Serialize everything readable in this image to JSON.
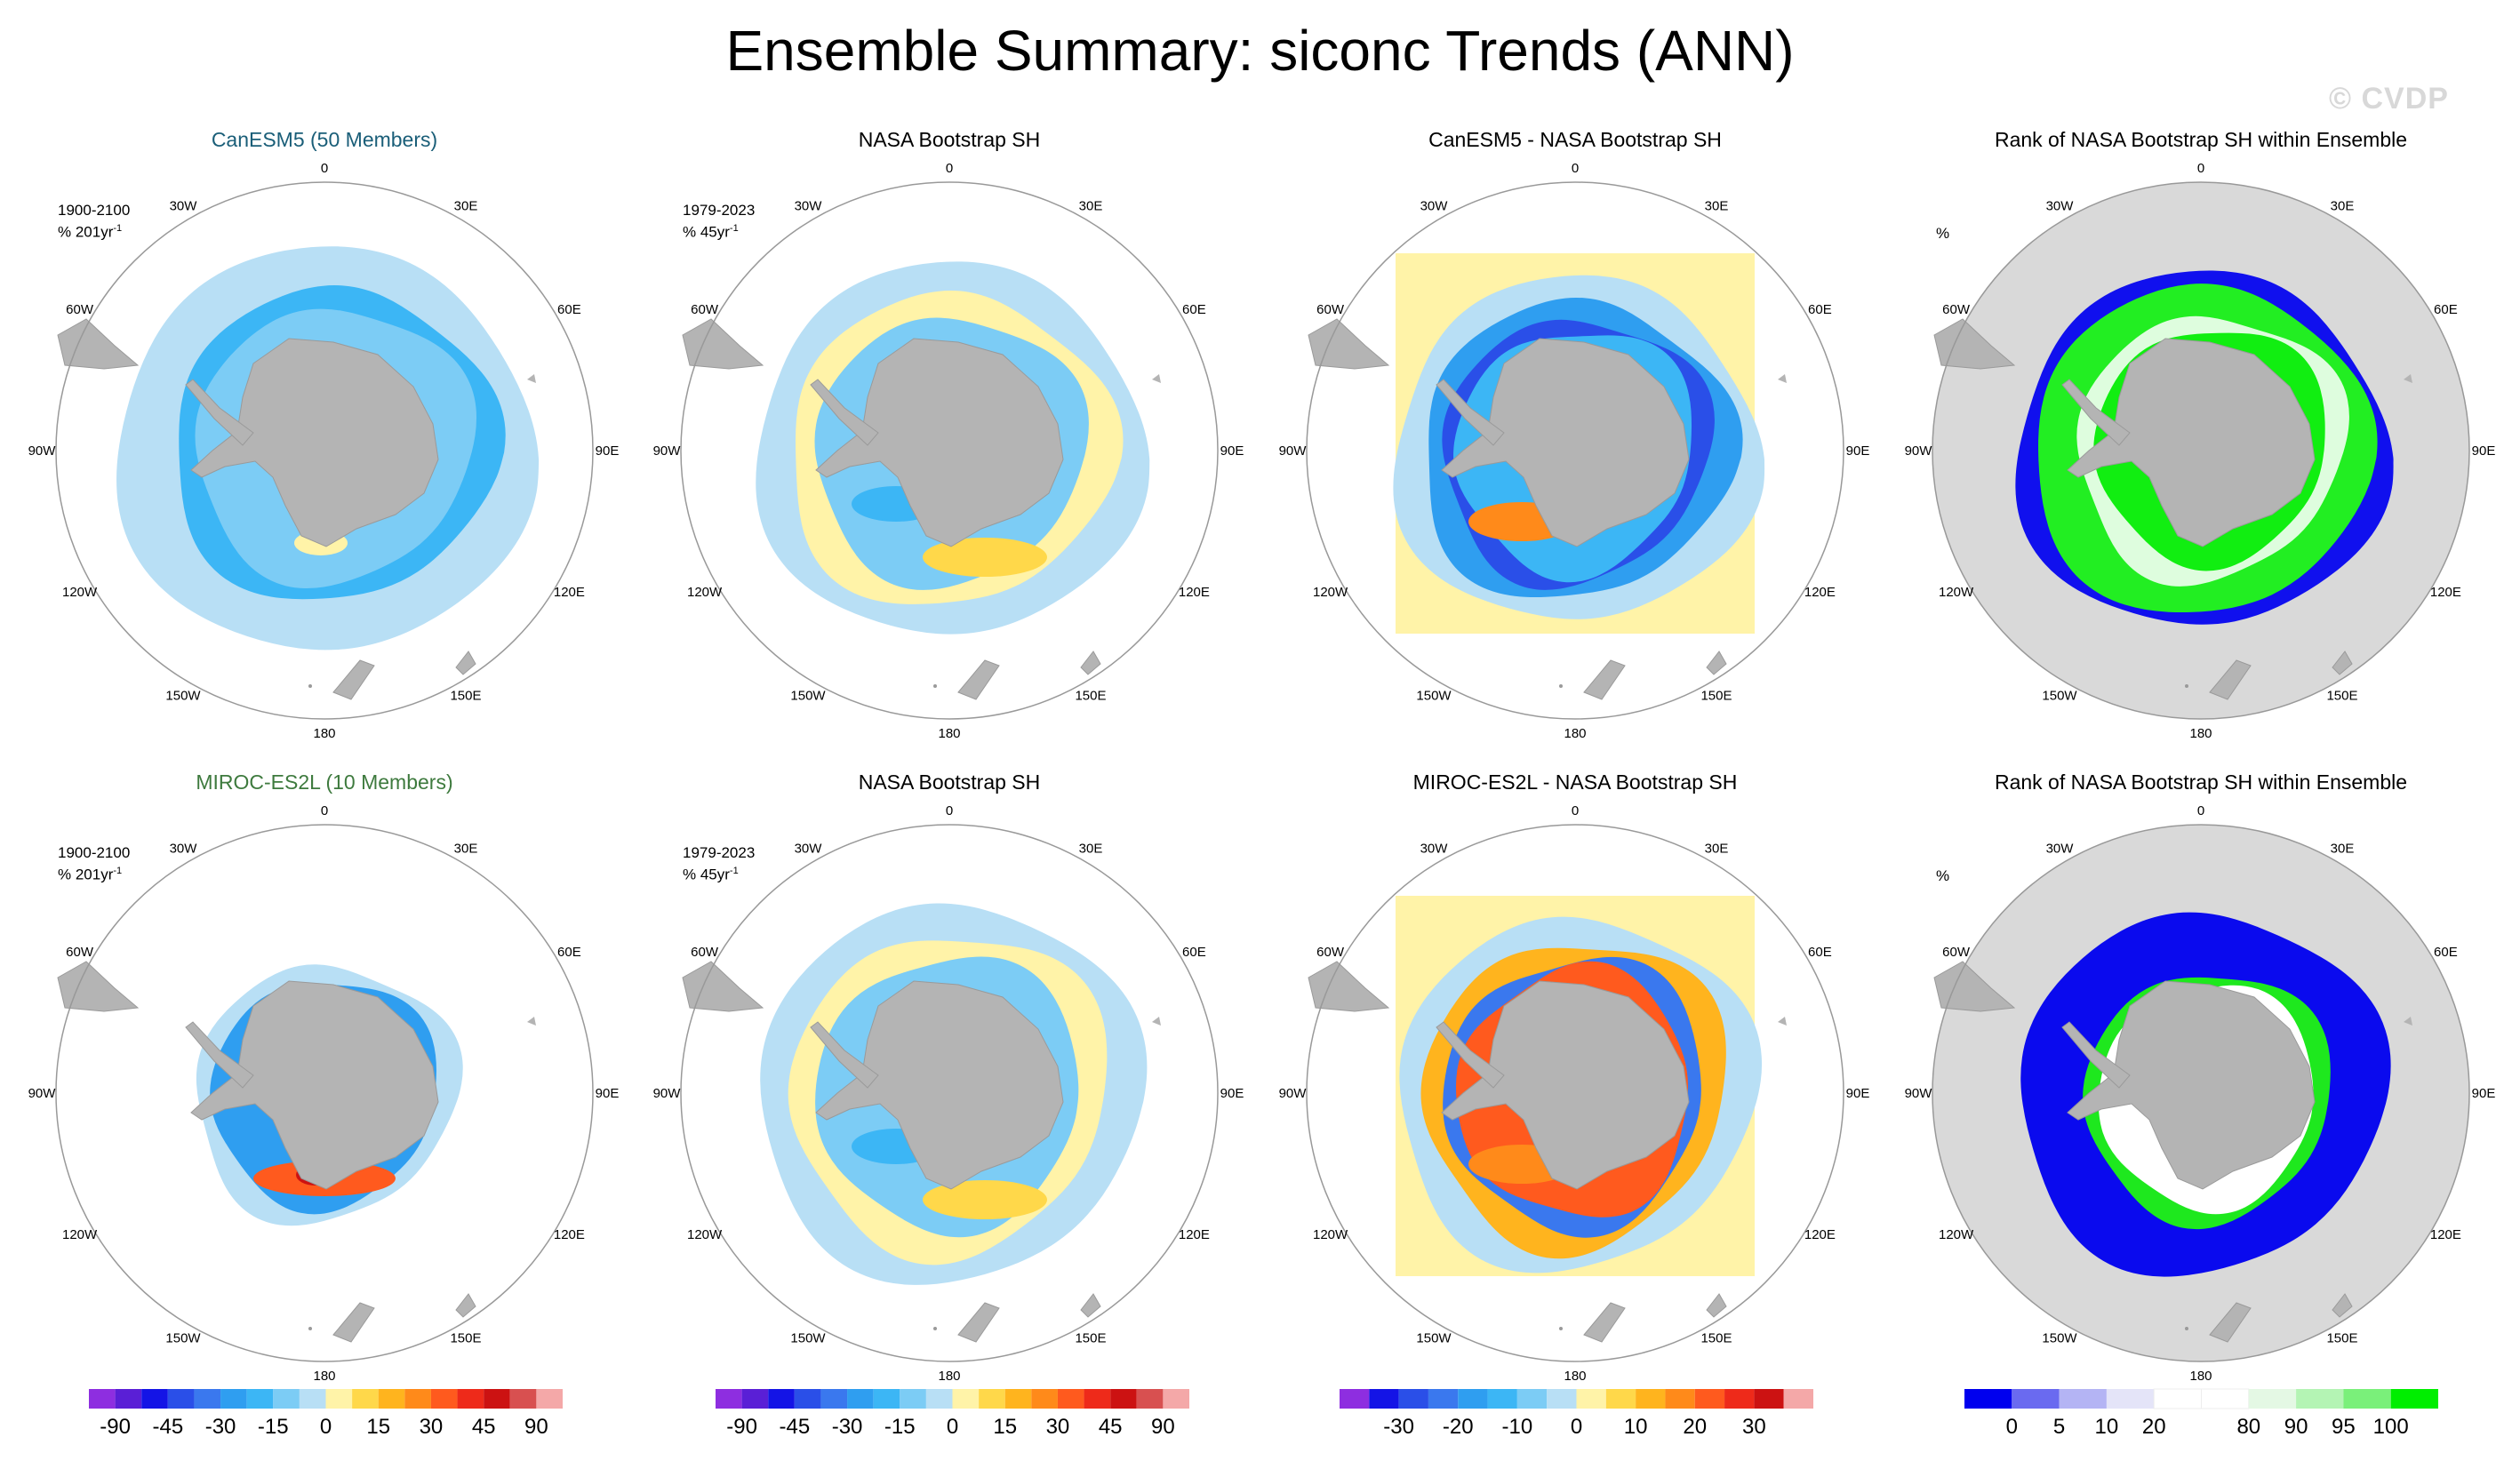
{
  "title": "Ensemble Summary: siconc Trends (ANN)",
  "watermark": "© CVDP",
  "lon_labels": [
    "0",
    "30E",
    "60E",
    "90E",
    "120E",
    "150E",
    "180",
    "150W",
    "120W",
    "90W",
    "60W",
    "30W"
  ],
  "percent_label": "%",
  "panels": [
    {
      "title": "CanESM5 (50 Members)",
      "period": "1900-2100",
      "units": "% 201yr",
      "units_exp": "-1",
      "kind": "model",
      "variant": 1
    },
    {
      "title": "NASA Bootstrap SH",
      "period": "1979-2023",
      "units": "% 45yr",
      "units_exp": "-1",
      "kind": "obs",
      "variant": 1
    },
    {
      "title": "CanESM5 - NASA Bootstrap SH",
      "kind": "diff",
      "variant": 1
    },
    {
      "title": "Rank of NASA Bootstrap SH within Ensemble",
      "kind": "rank",
      "variant": 1
    },
    {
      "title": "MIROC-ES2L (10 Members)",
      "period": "1900-2100",
      "units": "% 201yr",
      "units_exp": "-1",
      "kind": "model",
      "variant": 2
    },
    {
      "title": "NASA Bootstrap SH",
      "period": "1979-2023",
      "units": "% 45yr",
      "units_exp": "-1",
      "kind": "obs",
      "variant": 2
    },
    {
      "title": "MIROC-ES2L - NASA Bootstrap SH",
      "kind": "diff",
      "variant": 2
    },
    {
      "title": "Rank of NASA Bootstrap SH within Ensemble",
      "kind": "rank",
      "variant": 2
    }
  ],
  "colorbars": [
    {
      "name": "trend-colorbar-1",
      "colors": [
        "#8e2ee0",
        "#5a1fd6",
        "#1414e6",
        "#2a4fe8",
        "#3a78ee",
        "#2f9ef0",
        "#3cb6f5",
        "#7cccf5",
        "#b8dff5",
        "#fff3a8",
        "#ffd84a",
        "#ffb41e",
        "#ff8a1a",
        "#ff5a1e",
        "#ee2a1a",
        "#cc1212",
        "#d85050",
        "#f4a8a8"
      ],
      "ticks": [
        "-90",
        "-45",
        "-30",
        "-15",
        "0",
        "15",
        "30",
        "45",
        "90"
      ],
      "tick_positions": [
        1,
        3,
        5,
        7,
        9,
        11,
        13,
        15,
        17
      ]
    },
    {
      "name": "trend-colorbar-2",
      "colors": [
        "#8e2ee0",
        "#5a1fd6",
        "#1414e6",
        "#2a4fe8",
        "#3a78ee",
        "#2f9ef0",
        "#3cb6f5",
        "#7cccf5",
        "#b8dff5",
        "#fff3a8",
        "#ffd84a",
        "#ffb41e",
        "#ff8a1a",
        "#ff5a1e",
        "#ee2a1a",
        "#cc1212",
        "#d85050",
        "#f4a8a8"
      ],
      "ticks": [
        "-90",
        "-45",
        "-30",
        "-15",
        "0",
        "15",
        "30",
        "45",
        "90"
      ],
      "tick_positions": [
        1,
        3,
        5,
        7,
        9,
        11,
        13,
        15,
        17
      ]
    },
    {
      "name": "difference-colorbar",
      "colors": [
        "#8e2ee0",
        "#1414e6",
        "#2a4fe8",
        "#3a78ee",
        "#2f9ef0",
        "#3cb6f5",
        "#7cccf5",
        "#b8dff5",
        "#fff3a8",
        "#ffd84a",
        "#ffb41e",
        "#ff8a1a",
        "#ff5a1e",
        "#ee2a1a",
        "#cc1212",
        "#f4a8a8"
      ],
      "ticks": [
        "-30",
        "-20",
        "-10",
        "0",
        "10",
        "20",
        "30"
      ],
      "tick_positions": [
        2,
        4,
        6,
        8,
        10,
        12,
        14
      ]
    },
    {
      "name": "rank-colorbar",
      "colors": [
        "#0000ee",
        "#6a6af0",
        "#b4b4f4",
        "#e4e4f8",
        "#ffffff",
        "#ffffff",
        "#e4f8e4",
        "#b4f4b4",
        "#7af07a",
        "#00ee00"
      ],
      "ticks": [
        "0",
        "5",
        "10",
        "20",
        "80",
        "90",
        "95",
        "100"
      ],
      "tick_positions": [
        1,
        2,
        3,
        4,
        6,
        7,
        8,
        9
      ]
    }
  ]
}
